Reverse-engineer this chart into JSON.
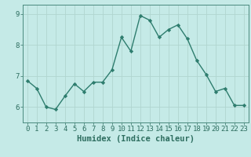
{
  "x": [
    0,
    1,
    2,
    3,
    4,
    5,
    6,
    7,
    8,
    9,
    10,
    11,
    12,
    13,
    14,
    15,
    16,
    17,
    18,
    19,
    20,
    21,
    22,
    23
  ],
  "y": [
    6.85,
    6.6,
    6.0,
    5.92,
    6.35,
    6.75,
    6.5,
    6.8,
    6.8,
    7.2,
    8.25,
    7.8,
    8.95,
    8.8,
    8.25,
    8.5,
    8.65,
    8.2,
    7.5,
    7.05,
    6.5,
    6.6,
    6.05,
    6.05
  ],
  "line_color": "#2e7d6e",
  "marker": "D",
  "marker_size": 2.2,
  "linewidth": 1.0,
  "bg_color": "#c5eae7",
  "grid_color": "#b0d5d0",
  "axis_color": "#4a8a7e",
  "xlabel": "Humidex (Indice chaleur)",
  "xlabel_fontsize": 7.5,
  "xlim": [
    -0.5,
    23.5
  ],
  "ylim": [
    5.5,
    9.3
  ],
  "yticks": [
    6,
    7,
    8,
    9
  ],
  "xticks": [
    0,
    1,
    2,
    3,
    4,
    5,
    6,
    7,
    8,
    9,
    10,
    11,
    12,
    13,
    14,
    15,
    16,
    17,
    18,
    19,
    20,
    21,
    22,
    23
  ],
  "tick_fontsize": 6.5,
  "tick_color": "#2e6e60"
}
